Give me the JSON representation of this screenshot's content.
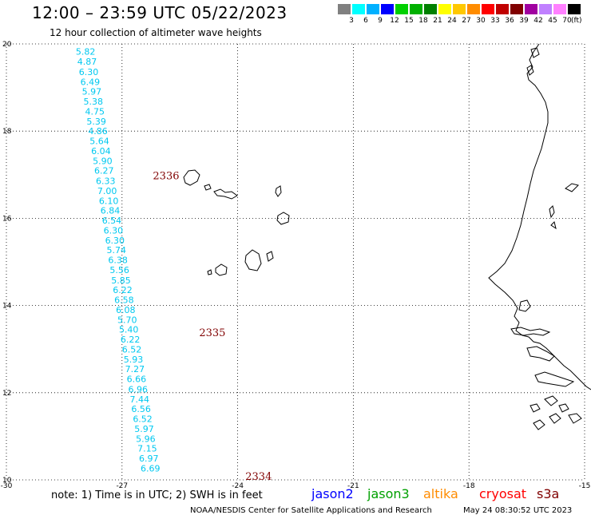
{
  "header": {
    "title": "12:00 – 23:59 UTC 05/22/2023",
    "subtitle": "12 hour collection of altimeter wave heights"
  },
  "colorbar": {
    "unit": "(ft)",
    "bins": [
      {
        "label": "3",
        "color": "#808080"
      },
      {
        "label": "6",
        "color": "#00ffff"
      },
      {
        "label": "9",
        "color": "#00b0ff"
      },
      {
        "label": "12",
        "color": "#0000ff"
      },
      {
        "label": "15",
        "color": "#00d000"
      },
      {
        "label": "18",
        "color": "#00b000"
      },
      {
        "label": "21",
        "color": "#008000"
      },
      {
        "label": "24",
        "color": "#ffff00"
      },
      {
        "label": "27",
        "color": "#ffc800"
      },
      {
        "label": "30",
        "color": "#ff8c00"
      },
      {
        "label": "33",
        "color": "#ff0000"
      },
      {
        "label": "36",
        "color": "#c00000"
      },
      {
        "label": "39",
        "color": "#800000"
      },
      {
        "label": "42",
        "color": "#a000a0"
      },
      {
        "label": "45",
        "color": "#c080ff"
      },
      {
        "label": "70",
        "color": "#ff80ff"
      },
      {
        "label": "",
        "color": "#000000"
      }
    ]
  },
  "map": {
    "lon_range": [
      -30,
      -15
    ],
    "lat_range": [
      10,
      20
    ],
    "lon_ticks": [
      "-30",
      "-27",
      "-24",
      "-21",
      "-18",
      "-15"
    ],
    "lat_ticks": [
      "20",
      "18",
      "16",
      "14",
      "12",
      "10"
    ],
    "grid": "dotted",
    "track_color": "#00c8f0",
    "time_label_color": "#800000",
    "time_labels": [
      {
        "text": "2336",
        "lat": 16.9,
        "lon": -26.2
      },
      {
        "text": "2335",
        "lat": 13.3,
        "lon": -25.0
      },
      {
        "text": "2334",
        "lat": 10.0,
        "lon": -23.8
      }
    ],
    "track": [
      {
        "lat": 19.75,
        "lon": -28.2,
        "swh": "5.82"
      },
      {
        "lat": 19.52,
        "lon": -28.16,
        "swh": "4.87"
      },
      {
        "lat": 19.29,
        "lon": -28.12,
        "swh": "6.30"
      },
      {
        "lat": 19.06,
        "lon": -28.08,
        "swh": "6.49"
      },
      {
        "lat": 18.84,
        "lon": -28.04,
        "swh": "5.97"
      },
      {
        "lat": 18.61,
        "lon": -28.0,
        "swh": "5.38"
      },
      {
        "lat": 18.38,
        "lon": -27.96,
        "swh": "4.75"
      },
      {
        "lat": 18.15,
        "lon": -27.92,
        "swh": "5.39"
      },
      {
        "lat": 17.93,
        "lon": -27.88,
        "swh": "4.86"
      },
      {
        "lat": 17.7,
        "lon": -27.84,
        "swh": "5.64"
      },
      {
        "lat": 17.47,
        "lon": -27.8,
        "swh": "6.04"
      },
      {
        "lat": 17.24,
        "lon": -27.76,
        "swh": "5.90"
      },
      {
        "lat": 17.02,
        "lon": -27.72,
        "swh": "6.27"
      },
      {
        "lat": 16.79,
        "lon": -27.68,
        "swh": "6.33"
      },
      {
        "lat": 16.56,
        "lon": -27.64,
        "swh": "7.00"
      },
      {
        "lat": 16.33,
        "lon": -27.6,
        "swh": "6.10"
      },
      {
        "lat": 16.11,
        "lon": -27.56,
        "swh": "6.84"
      },
      {
        "lat": 15.88,
        "lon": -27.52,
        "swh": "6.54"
      },
      {
        "lat": 15.65,
        "lon": -27.48,
        "swh": "6.30"
      },
      {
        "lat": 15.42,
        "lon": -27.44,
        "swh": "6.30"
      },
      {
        "lat": 15.2,
        "lon": -27.4,
        "swh": "5.74"
      },
      {
        "lat": 14.97,
        "lon": -27.36,
        "swh": "6.38"
      },
      {
        "lat": 14.74,
        "lon": -27.32,
        "swh": "5.56"
      },
      {
        "lat": 14.51,
        "lon": -27.28,
        "swh": "5.85"
      },
      {
        "lat": 14.29,
        "lon": -27.24,
        "swh": "6.22"
      },
      {
        "lat": 14.06,
        "lon": -27.2,
        "swh": "6.58"
      },
      {
        "lat": 13.83,
        "lon": -27.16,
        "swh": "6.08"
      },
      {
        "lat": 13.6,
        "lon": -27.12,
        "swh": "5.70"
      },
      {
        "lat": 13.38,
        "lon": -27.08,
        "swh": "5.40"
      },
      {
        "lat": 13.15,
        "lon": -27.04,
        "swh": "6.22"
      },
      {
        "lat": 12.92,
        "lon": -27.0,
        "swh": "6.52"
      },
      {
        "lat": 12.69,
        "lon": -26.96,
        "swh": "5.93"
      },
      {
        "lat": 12.47,
        "lon": -26.92,
        "swh": "7.27"
      },
      {
        "lat": 12.24,
        "lon": -26.88,
        "swh": "6.66"
      },
      {
        "lat": 12.01,
        "lon": -26.84,
        "swh": "6.96"
      },
      {
        "lat": 11.78,
        "lon": -26.8,
        "swh": "7.44"
      },
      {
        "lat": 11.56,
        "lon": -26.76,
        "swh": "6.56"
      },
      {
        "lat": 11.33,
        "lon": -26.72,
        "swh": "6.52"
      },
      {
        "lat": 11.1,
        "lon": -26.68,
        "swh": "5.97"
      },
      {
        "lat": 10.87,
        "lon": -26.64,
        "swh": "5.96"
      },
      {
        "lat": 10.65,
        "lon": -26.6,
        "swh": "7.15"
      },
      {
        "lat": 10.42,
        "lon": -26.56,
        "swh": "6.97"
      },
      {
        "lat": 10.19,
        "lon": -26.52,
        "swh": "6.69"
      }
    ]
  },
  "footer": {
    "note": "note:  1) Time is in UTC;  2) SWH is in feet",
    "satellites": [
      {
        "name": "jason2",
        "color": "#0000ff"
      },
      {
        "name": "jason3",
        "color": "#00a000"
      },
      {
        "name": "altika",
        "color": "#ff8c00"
      },
      {
        "name": "cryosat",
        "color": "#ff0000"
      },
      {
        "name": "s3a",
        "color": "#800000"
      }
    ],
    "credit": "NOAA/NESDIS Center for Satellite Applications and Research",
    "timestamp": "May 24 08:30:52 UTC 2023"
  }
}
